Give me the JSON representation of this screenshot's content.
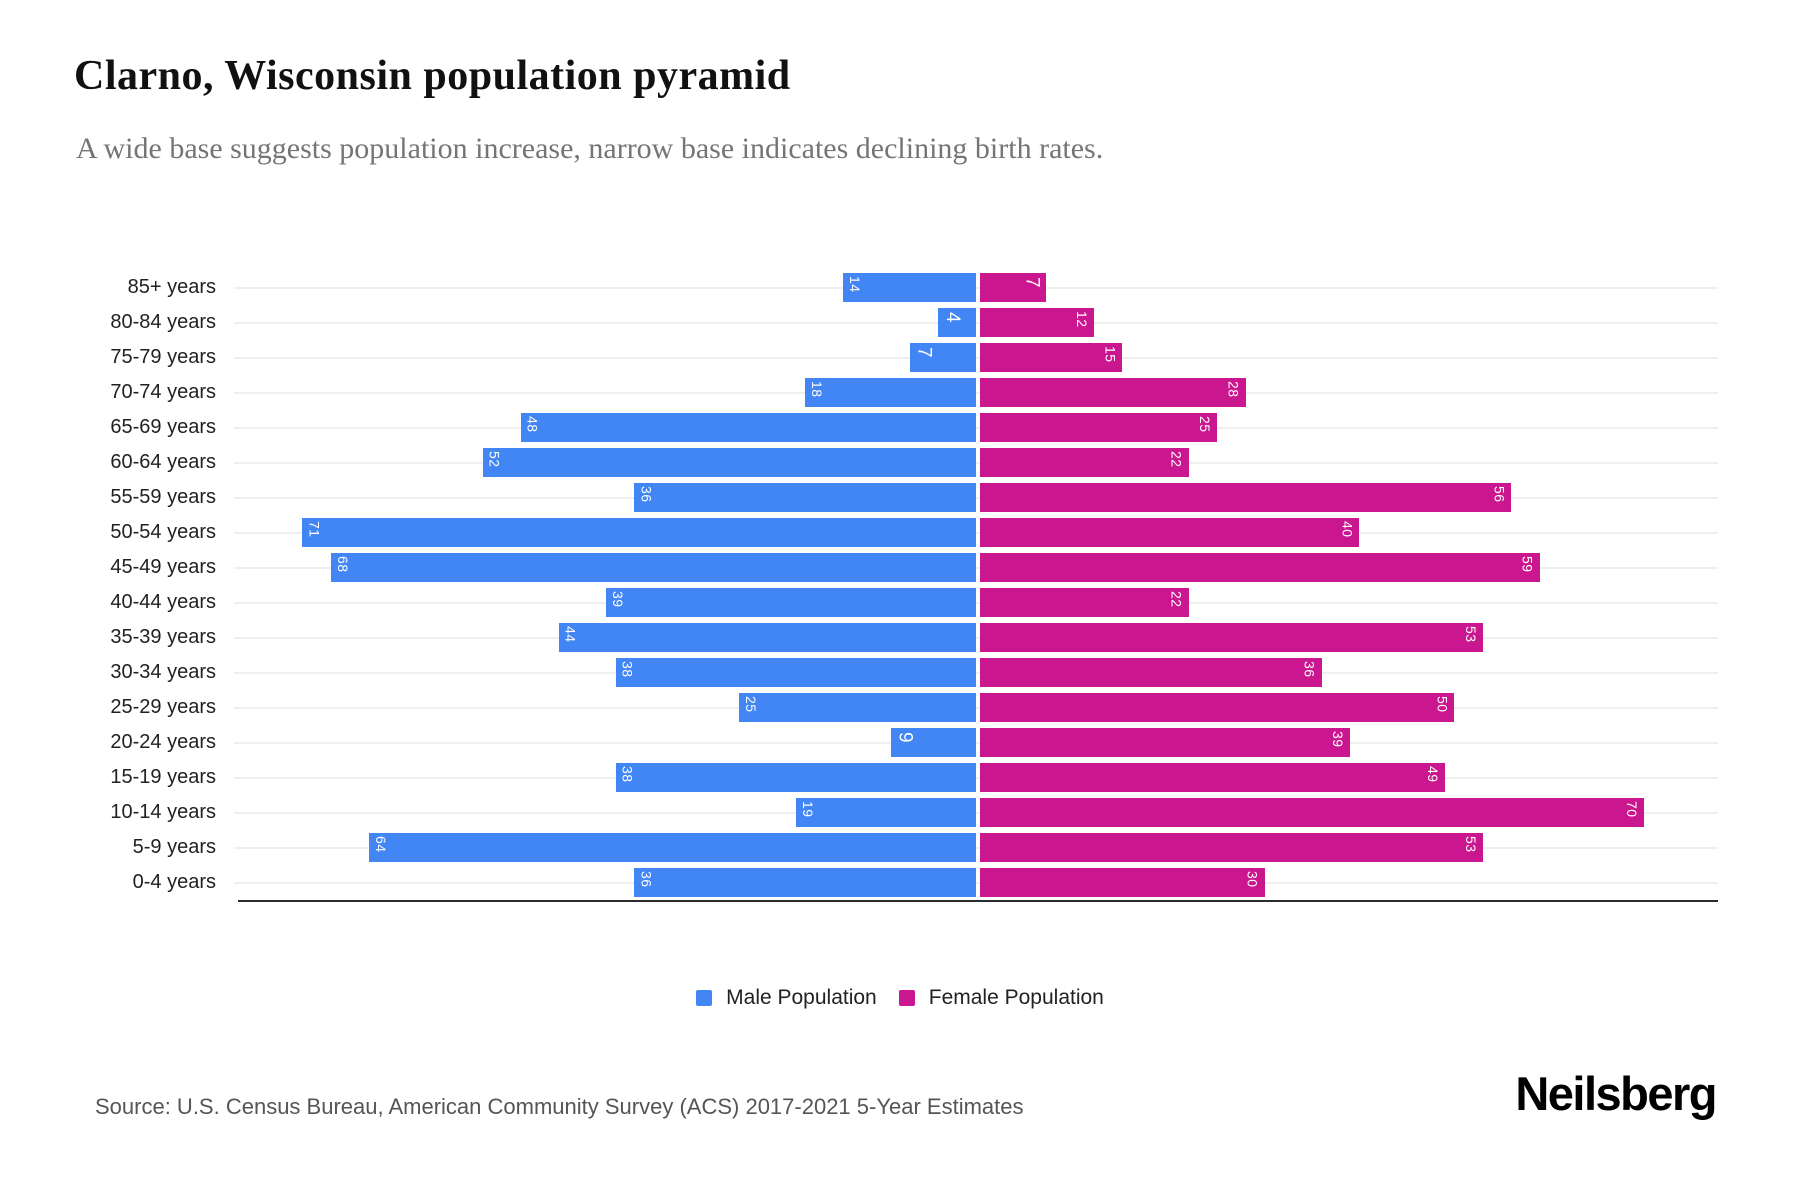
{
  "header": {
    "title": "Clarno, Wisconsin population pyramid",
    "subtitle": "A wide base suggests population increase, narrow base indicates declining birth rates."
  },
  "chart_data": {
    "type": "bar",
    "variant": "population-pyramid",
    "orientation": "horizontal",
    "categories": [
      "85+ years",
      "80-84 years",
      "75-79 years",
      "70-74 years",
      "65-69 years",
      "60-64 years",
      "55-59 years",
      "50-54 years",
      "45-49 years",
      "40-44 years",
      "35-39 years",
      "30-34 years",
      "25-29 years",
      "20-24 years",
      "15-19 years",
      "10-14 years",
      "5-9 years",
      "0-4 years"
    ],
    "series": [
      {
        "name": "Male Population",
        "side": "left",
        "values": [
          14,
          4,
          7,
          18,
          48,
          52,
          36,
          71,
          68,
          39,
          44,
          38,
          25,
          9,
          38,
          19,
          64,
          36
        ]
      },
      {
        "name": "Female Population",
        "side": "right",
        "values": [
          7,
          12,
          15,
          28,
          25,
          22,
          56,
          40,
          59,
          22,
          53,
          36,
          50,
          39,
          49,
          70,
          53,
          30
        ]
      }
    ],
    "value_axis_max_each_side": 78,
    "grid": "horizontal-light",
    "legend_position": "bottom",
    "bar_labels": "value-inside-rotated"
  },
  "legend": {
    "male_label": "Male Population",
    "female_label": "Female Population"
  },
  "footer": {
    "source": "Source: U.S. Census Bureau, American Community Survey (ACS) 2017-2021 5-Year Estimates",
    "brand": "Neilsberg"
  },
  "colors": {
    "male": "#4285F4",
    "female": "#CA168F",
    "gridline": "#efefef",
    "axis": "#2b2b2b",
    "title": "#111111",
    "subtitle": "#757575",
    "source": "#555555"
  }
}
